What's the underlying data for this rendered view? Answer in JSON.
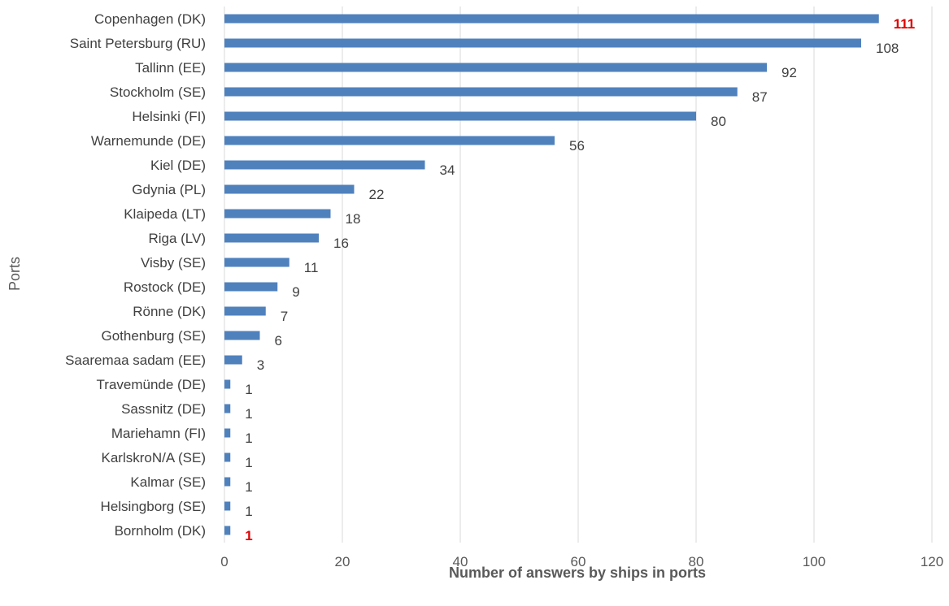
{
  "chart_data": {
    "type": "bar",
    "orientation": "horizontal",
    "title": "",
    "xlabel": "Number of answers by ships in ports",
    "ylabel": "Ports",
    "xlim": [
      0,
      120
    ],
    "xticks": [
      0,
      20,
      40,
      60,
      80,
      100,
      120
    ],
    "grid": "vertical",
    "legend": "none",
    "bar_color": "#4f81bd",
    "highlight_color": "#e00000",
    "categories": [
      "Copenhagen (DK)",
      "Saint Petersburg (RU)",
      "Tallinn (EE)",
      "Stockholm (SE)",
      "Helsinki (FI)",
      "Warnemunde (DE)",
      "Kiel (DE)",
      "Gdynia (PL)",
      "Klaipeda (LT)",
      "Riga (LV)",
      "Visby (SE)",
      "Rostock (DE)",
      "Rönne (DK)",
      "Gothenburg (SE)",
      "Saaremaa sadam (EE)",
      "Travemünde (DE)",
      "Sassnitz (DE)",
      "Mariehamn (FI)",
      "KarlskroN/A (SE)",
      "Kalmar (SE)",
      "Helsingborg (SE)",
      "Bornholm (DK)"
    ],
    "values": [
      111,
      108,
      92,
      87,
      80,
      56,
      34,
      22,
      18,
      16,
      11,
      9,
      7,
      6,
      3,
      1,
      1,
      1,
      1,
      1,
      1,
      1
    ],
    "highlighted_labels": [
      0,
      21
    ]
  }
}
